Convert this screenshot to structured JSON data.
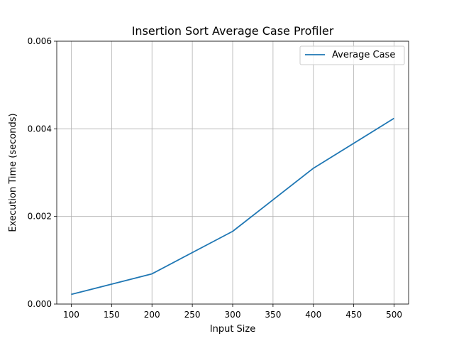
{
  "chart_data": {
    "type": "line",
    "title": "Insertion Sort Average Case Profiler",
    "xlabel": "Input Size",
    "ylabel": "Execution Time (seconds)",
    "x": [
      100,
      200,
      300,
      400,
      500
    ],
    "series": [
      {
        "name": "Average Case",
        "values": [
          0.00022,
          0.00069,
          0.00166,
          0.0031,
          0.00424
        ],
        "color": "#1f77b4"
      }
    ],
    "xlim": [
      82,
      518
    ],
    "ylim": [
      0,
      0.006
    ],
    "xticks": [
      100,
      150,
      200,
      250,
      300,
      350,
      400,
      450,
      500
    ],
    "xtick_labels": [
      "100",
      "150",
      "200",
      "250",
      "300",
      "350",
      "400",
      "450",
      "500"
    ],
    "yticks": [
      0,
      0.002,
      0.004,
      0.006
    ],
    "ytick_labels": [
      "0.000",
      "0.002",
      "0.004",
      "0.006"
    ],
    "grid": true,
    "legend": "upper right"
  }
}
